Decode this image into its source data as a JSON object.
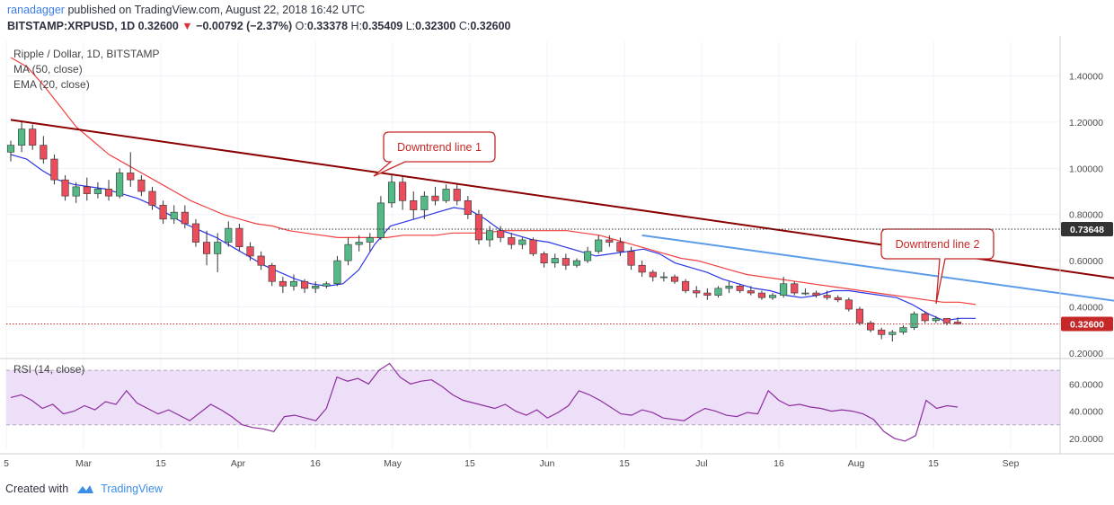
{
  "header": {
    "author": "ranadagger",
    "published_text": "published on TradingView.com, August 22, 2018 16:42 UTC",
    "symbol": "BITSTAMP:XRPUSD, 1D",
    "last": "0.32600",
    "change": "−0.00792 (−2.37%)",
    "open_label": "O:",
    "open": "0.33378",
    "high_label": "H:",
    "high": "0.35409",
    "low_label": "L:",
    "low": "0.32300",
    "close_label": "C:",
    "close": "0.32600"
  },
  "legend": {
    "title": "Ripple / Dollar, 1D, BITSTAMP",
    "ma": "MA (50, close)",
    "ema": "EMA (20, close)"
  },
  "footer": {
    "created_with": "Created with",
    "brand": "TradingView"
  },
  "colors": {
    "up": "#53b987",
    "down": "#eb4d5c",
    "ma": "#f23f3f",
    "ema": "#2b35e8",
    "trend1": "#8b0000",
    "trend2": "#5b9bea",
    "rsi": "#8e2ea0",
    "rsi_band": "#ecdff7",
    "label_red": "#c62828",
    "label_dark": "#333333"
  },
  "chart_data": [
    {
      "type": "candlestick",
      "title": "Ripple / Dollar, 1D, BITSTAMP",
      "ylim": [
        0.18,
        1.55
      ],
      "y_ticks": [
        "1.40000",
        "1.20000",
        "1.00000",
        "0.80000",
        "0.60000",
        "0.40000",
        "0.20000"
      ],
      "x_ticks": [
        "5",
        "Mar",
        "15",
        "Apr",
        "16",
        "May",
        "15",
        "Jun",
        "15",
        "Jul",
        "16",
        "Aug",
        "15",
        "Sep"
      ],
      "price_labels": [
        {
          "value": 0.73648,
          "text": "0.73648",
          "style": "dark"
        },
        {
          "value": 0.326,
          "text": "0.32600",
          "style": "red"
        }
      ],
      "series": [
        {
          "name": "MA (50, close)",
          "values": [
            1.48,
            1.44,
            1.36,
            1.27,
            1.18,
            1.12,
            1.06,
            1.02,
            0.98,
            0.94,
            0.9,
            0.86,
            0.83,
            0.8,
            0.78,
            0.76,
            0.75,
            0.73,
            0.72,
            0.71,
            0.7,
            0.7,
            0.7,
            0.7,
            0.71,
            0.71,
            0.71,
            0.72,
            0.72,
            0.72,
            0.73,
            0.73,
            0.73,
            0.73,
            0.73,
            0.72,
            0.71,
            0.69,
            0.67,
            0.65,
            0.63,
            0.61,
            0.6,
            0.58,
            0.56,
            0.54,
            0.53,
            0.52,
            0.51,
            0.5,
            0.49,
            0.48,
            0.47,
            0.46,
            0.45,
            0.44,
            0.43,
            0.42,
            0.42,
            0.41
          ]
        },
        {
          "name": "EMA (20, close)",
          "values": [
            1.06,
            1.04,
            0.99,
            0.95,
            0.93,
            0.92,
            0.91,
            0.89,
            0.87,
            0.84,
            0.8,
            0.76,
            0.73,
            0.7,
            0.66,
            0.62,
            0.58,
            0.55,
            0.52,
            0.5,
            0.49,
            0.5,
            0.56,
            0.67,
            0.75,
            0.77,
            0.79,
            0.81,
            0.83,
            0.82,
            0.78,
            0.73,
            0.71,
            0.69,
            0.68,
            0.66,
            0.64,
            0.62,
            0.63,
            0.64,
            0.65,
            0.63,
            0.59,
            0.57,
            0.55,
            0.52,
            0.5,
            0.48,
            0.47,
            0.45,
            0.44,
            0.45,
            0.47,
            0.47,
            0.46,
            0.45,
            0.44,
            0.41,
            0.37,
            0.34,
            0.35,
            0.35
          ]
        }
      ],
      "candles": [
        {
          "o": 1.07,
          "h": 1.12,
          "l": 1.03,
          "c": 1.1
        },
        {
          "o": 1.1,
          "h": 1.2,
          "l": 1.07,
          "c": 1.17
        },
        {
          "o": 1.17,
          "h": 1.19,
          "l": 1.08,
          "c": 1.1
        },
        {
          "o": 1.1,
          "h": 1.14,
          "l": 1.02,
          "c": 1.04
        },
        {
          "o": 1.04,
          "h": 1.06,
          "l": 0.93,
          "c": 0.95
        },
        {
          "o": 0.95,
          "h": 0.97,
          "l": 0.86,
          "c": 0.88
        },
        {
          "o": 0.88,
          "h": 0.94,
          "l": 0.85,
          "c": 0.92
        },
        {
          "o": 0.92,
          "h": 0.96,
          "l": 0.86,
          "c": 0.89
        },
        {
          "o": 0.89,
          "h": 0.94,
          "l": 0.87,
          "c": 0.91
        },
        {
          "o": 0.91,
          "h": 0.95,
          "l": 0.86,
          "c": 0.88
        },
        {
          "o": 0.88,
          "h": 1.0,
          "l": 0.87,
          "c": 0.98
        },
        {
          "o": 0.98,
          "h": 1.07,
          "l": 0.92,
          "c": 0.95
        },
        {
          "o": 0.95,
          "h": 0.97,
          "l": 0.88,
          "c": 0.9
        },
        {
          "o": 0.9,
          "h": 0.92,
          "l": 0.82,
          "c": 0.84
        },
        {
          "o": 0.84,
          "h": 0.86,
          "l": 0.76,
          "c": 0.78
        },
        {
          "o": 0.78,
          "h": 0.84,
          "l": 0.76,
          "c": 0.81
        },
        {
          "o": 0.81,
          "h": 0.84,
          "l": 0.74,
          "c": 0.76
        },
        {
          "o": 0.76,
          "h": 0.78,
          "l": 0.66,
          "c": 0.68
        },
        {
          "o": 0.68,
          "h": 0.73,
          "l": 0.58,
          "c": 0.63
        },
        {
          "o": 0.63,
          "h": 0.72,
          "l": 0.55,
          "c": 0.68
        },
        {
          "o": 0.68,
          "h": 0.77,
          "l": 0.66,
          "c": 0.74
        },
        {
          "o": 0.74,
          "h": 0.76,
          "l": 0.64,
          "c": 0.66
        },
        {
          "o": 0.66,
          "h": 0.68,
          "l": 0.6,
          "c": 0.62
        },
        {
          "o": 0.62,
          "h": 0.64,
          "l": 0.56,
          "c": 0.58
        },
        {
          "o": 0.58,
          "h": 0.59,
          "l": 0.49,
          "c": 0.51
        },
        {
          "o": 0.51,
          "h": 0.53,
          "l": 0.46,
          "c": 0.49
        },
        {
          "o": 0.49,
          "h": 0.54,
          "l": 0.47,
          "c": 0.51
        },
        {
          "o": 0.51,
          "h": 0.52,
          "l": 0.46,
          "c": 0.48
        },
        {
          "o": 0.48,
          "h": 0.51,
          "l": 0.46,
          "c": 0.49
        },
        {
          "o": 0.49,
          "h": 0.51,
          "l": 0.48,
          "c": 0.5
        },
        {
          "o": 0.5,
          "h": 0.62,
          "l": 0.49,
          "c": 0.6
        },
        {
          "o": 0.6,
          "h": 0.7,
          "l": 0.58,
          "c": 0.67
        },
        {
          "o": 0.67,
          "h": 0.71,
          "l": 0.64,
          "c": 0.68
        },
        {
          "o": 0.68,
          "h": 0.72,
          "l": 0.64,
          "c": 0.7
        },
        {
          "o": 0.7,
          "h": 0.88,
          "l": 0.69,
          "c": 0.85
        },
        {
          "o": 0.85,
          "h": 0.97,
          "l": 0.83,
          "c": 0.94
        },
        {
          "o": 0.94,
          "h": 0.97,
          "l": 0.82,
          "c": 0.86
        },
        {
          "o": 0.86,
          "h": 0.9,
          "l": 0.78,
          "c": 0.82
        },
        {
          "o": 0.82,
          "h": 0.9,
          "l": 0.78,
          "c": 0.88
        },
        {
          "o": 0.88,
          "h": 0.92,
          "l": 0.84,
          "c": 0.86
        },
        {
          "o": 0.86,
          "h": 0.93,
          "l": 0.85,
          "c": 0.91
        },
        {
          "o": 0.91,
          "h": 0.93,
          "l": 0.84,
          "c": 0.86
        },
        {
          "o": 0.86,
          "h": 0.88,
          "l": 0.78,
          "c": 0.8
        },
        {
          "o": 0.8,
          "h": 0.82,
          "l": 0.67,
          "c": 0.69
        },
        {
          "o": 0.69,
          "h": 0.75,
          "l": 0.66,
          "c": 0.73
        },
        {
          "o": 0.73,
          "h": 0.75,
          "l": 0.68,
          "c": 0.7
        },
        {
          "o": 0.7,
          "h": 0.72,
          "l": 0.65,
          "c": 0.67
        },
        {
          "o": 0.67,
          "h": 0.7,
          "l": 0.65,
          "c": 0.69
        },
        {
          "o": 0.69,
          "h": 0.7,
          "l": 0.62,
          "c": 0.63
        },
        {
          "o": 0.63,
          "h": 0.64,
          "l": 0.57,
          "c": 0.59
        },
        {
          "o": 0.59,
          "h": 0.63,
          "l": 0.57,
          "c": 0.61
        },
        {
          "o": 0.61,
          "h": 0.63,
          "l": 0.56,
          "c": 0.58
        },
        {
          "o": 0.58,
          "h": 0.61,
          "l": 0.57,
          "c": 0.6
        },
        {
          "o": 0.6,
          "h": 0.66,
          "l": 0.59,
          "c": 0.64
        },
        {
          "o": 0.64,
          "h": 0.71,
          "l": 0.63,
          "c": 0.69
        },
        {
          "o": 0.69,
          "h": 0.71,
          "l": 0.66,
          "c": 0.68
        },
        {
          "o": 0.68,
          "h": 0.7,
          "l": 0.62,
          "c": 0.64
        },
        {
          "o": 0.64,
          "h": 0.66,
          "l": 0.56,
          "c": 0.58
        },
        {
          "o": 0.58,
          "h": 0.6,
          "l": 0.53,
          "c": 0.55
        },
        {
          "o": 0.55,
          "h": 0.56,
          "l": 0.51,
          "c": 0.53
        },
        {
          "o": 0.53,
          "h": 0.55,
          "l": 0.51,
          "c": 0.53
        },
        {
          "o": 0.53,
          "h": 0.54,
          "l": 0.5,
          "c": 0.51
        },
        {
          "o": 0.51,
          "h": 0.52,
          "l": 0.46,
          "c": 0.47
        },
        {
          "o": 0.47,
          "h": 0.49,
          "l": 0.44,
          "c": 0.46
        },
        {
          "o": 0.46,
          "h": 0.48,
          "l": 0.43,
          "c": 0.45
        },
        {
          "o": 0.45,
          "h": 0.49,
          "l": 0.44,
          "c": 0.48
        },
        {
          "o": 0.48,
          "h": 0.51,
          "l": 0.46,
          "c": 0.49
        },
        {
          "o": 0.49,
          "h": 0.5,
          "l": 0.46,
          "c": 0.47
        },
        {
          "o": 0.47,
          "h": 0.49,
          "l": 0.45,
          "c": 0.46
        },
        {
          "o": 0.46,
          "h": 0.47,
          "l": 0.43,
          "c": 0.44
        },
        {
          "o": 0.44,
          "h": 0.46,
          "l": 0.43,
          "c": 0.45
        },
        {
          "o": 0.45,
          "h": 0.53,
          "l": 0.44,
          "c": 0.5
        },
        {
          "o": 0.5,
          "h": 0.51,
          "l": 0.45,
          "c": 0.46
        },
        {
          "o": 0.46,
          "h": 0.48,
          "l": 0.45,
          "c": 0.46
        },
        {
          "o": 0.46,
          "h": 0.47,
          "l": 0.44,
          "c": 0.45
        },
        {
          "o": 0.45,
          "h": 0.47,
          "l": 0.43,
          "c": 0.44
        },
        {
          "o": 0.44,
          "h": 0.45,
          "l": 0.42,
          "c": 0.43
        },
        {
          "o": 0.43,
          "h": 0.44,
          "l": 0.38,
          "c": 0.39
        },
        {
          "o": 0.39,
          "h": 0.4,
          "l": 0.32,
          "c": 0.33
        },
        {
          "o": 0.33,
          "h": 0.34,
          "l": 0.29,
          "c": 0.3
        },
        {
          "o": 0.3,
          "h": 0.31,
          "l": 0.26,
          "c": 0.28
        },
        {
          "o": 0.28,
          "h": 0.3,
          "l": 0.25,
          "c": 0.29
        },
        {
          "o": 0.29,
          "h": 0.32,
          "l": 0.28,
          "c": 0.31
        },
        {
          "o": 0.31,
          "h": 0.38,
          "l": 0.3,
          "c": 0.37
        },
        {
          "o": 0.37,
          "h": 0.38,
          "l": 0.33,
          "c": 0.34
        },
        {
          "o": 0.34,
          "h": 0.36,
          "l": 0.33,
          "c": 0.35
        },
        {
          "o": 0.35,
          "h": 0.35,
          "l": 0.32,
          "c": 0.33
        },
        {
          "o": 0.334,
          "h": 0.354,
          "l": 0.323,
          "c": 0.326
        }
      ],
      "trendlines": [
        {
          "label": "Downtrend line 1",
          "from": [
            0,
            1.21
          ],
          "to": [
            105,
            0.5
          ]
        },
        {
          "label": "Downtrend line 2",
          "from": [
            58,
            0.71
          ],
          "to": [
            110,
            0.37
          ]
        }
      ]
    },
    {
      "type": "line",
      "title": "RSI (14, close)",
      "ylim": [
        12,
        78
      ],
      "y_ticks": [
        "60.0000",
        "40.0000",
        "20.0000"
      ],
      "bands": [
        30,
        70
      ],
      "series": [
        {
          "name": "RSI (14, close)",
          "values": [
            50,
            52,
            48,
            42,
            45,
            38,
            40,
            44,
            41,
            47,
            45,
            55,
            46,
            42,
            38,
            41,
            37,
            33,
            39,
            45,
            41,
            36,
            30,
            28,
            27,
            25,
            36,
            37,
            35,
            33,
            42,
            65,
            62,
            64,
            60,
            70,
            75,
            65,
            60,
            62,
            63,
            58,
            52,
            48,
            46,
            44,
            42,
            45,
            40,
            37,
            41,
            35,
            39,
            44,
            55,
            52,
            48,
            43,
            38,
            37,
            41,
            39,
            35,
            34,
            33,
            38,
            42,
            40,
            37,
            36,
            39,
            38,
            55,
            48,
            44,
            45,
            43,
            42,
            40,
            41,
            40,
            38,
            34,
            25,
            20,
            18,
            22,
            48,
            42,
            44,
            43
          ]
        }
      ]
    }
  ]
}
